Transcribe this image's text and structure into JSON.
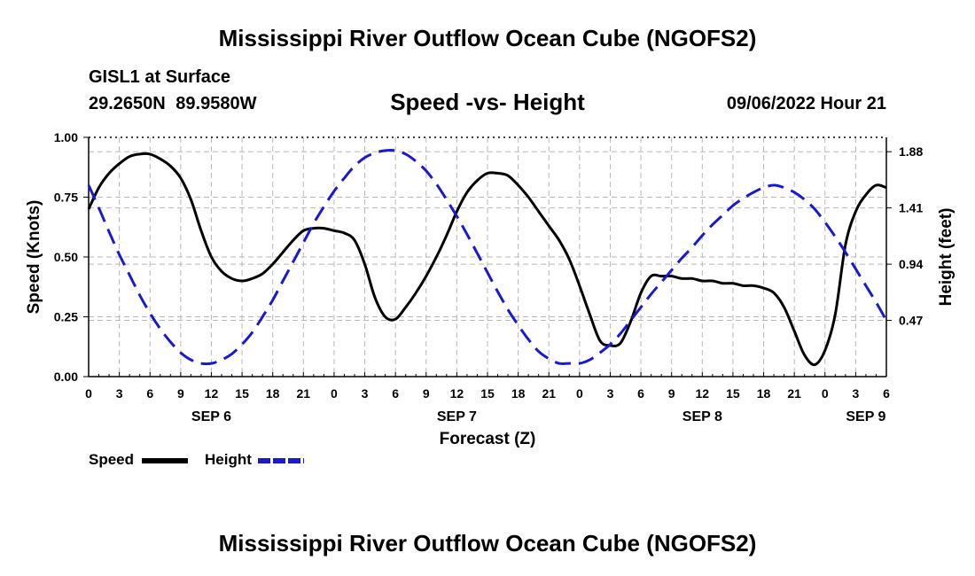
{
  "header": {
    "title": "Mississippi River Outflow Ocean Cube (NGOFS2)",
    "station": "GISL1 at Surface",
    "coords": "29.2650N  89.9580W",
    "subtitle": "Speed -vs- Height",
    "datetime": "09/06/2022 Hour 21"
  },
  "footer": {
    "title": "Mississippi River Outflow Ocean Cube (NGOFS2)"
  },
  "legend": {
    "speed_label": "Speed",
    "height_label": "Height"
  },
  "colors": {
    "speed": "#000000",
    "height": "#1a1acc",
    "grid": "#b8b8b8"
  },
  "chart_data": {
    "type": "line",
    "title": "Speed -vs- Height",
    "xlabel": "Forecast (Z)",
    "ylabel_left": "Speed (Knots)",
    "ylabel_right": "Height (feet)",
    "x_units": "hours since SEP 6 00Z",
    "xlim": [
      0,
      78
    ],
    "ylim_left": [
      0,
      1.0
    ],
    "yticks_left": [
      "0.00",
      "0.25",
      "0.50",
      "0.75",
      "1.00"
    ],
    "ylim_right": [
      0.0,
      2.0
    ],
    "yticks_right": [
      {
        "value": 0.47,
        "label": "0.47"
      },
      {
        "value": 0.94,
        "label": "0.94"
      },
      {
        "value": 1.41,
        "label": "1.41"
      },
      {
        "value": 1.88,
        "label": "1.88"
      }
    ],
    "xticks": [
      {
        "x": 0,
        "label": "0"
      },
      {
        "x": 3,
        "label": "3"
      },
      {
        "x": 6,
        "label": "6"
      },
      {
        "x": 9,
        "label": "9"
      },
      {
        "x": 12,
        "label": "12"
      },
      {
        "x": 15,
        "label": "15"
      },
      {
        "x": 18,
        "label": "18"
      },
      {
        "x": 21,
        "label": "21"
      },
      {
        "x": 24,
        "label": "0"
      },
      {
        "x": 27,
        "label": "3"
      },
      {
        "x": 30,
        "label": "6"
      },
      {
        "x": 33,
        "label": "9"
      },
      {
        "x": 36,
        "label": "12"
      },
      {
        "x": 39,
        "label": "15"
      },
      {
        "x": 42,
        "label": "18"
      },
      {
        "x": 45,
        "label": "21"
      },
      {
        "x": 48,
        "label": "0"
      },
      {
        "x": 51,
        "label": "3"
      },
      {
        "x": 54,
        "label": "6"
      },
      {
        "x": 57,
        "label": "9"
      },
      {
        "x": 60,
        "label": "12"
      },
      {
        "x": 63,
        "label": "15"
      },
      {
        "x": 66,
        "label": "18"
      },
      {
        "x": 69,
        "label": "21"
      },
      {
        "x": 72,
        "label": "0"
      },
      {
        "x": 75,
        "label": "3"
      },
      {
        "x": 78,
        "label": "6"
      }
    ],
    "day_labels": [
      {
        "x": 12,
        "label": "SEP 6"
      },
      {
        "x": 36,
        "label": "SEP 7"
      },
      {
        "x": 60,
        "label": "SEP 8"
      },
      {
        "x": 76,
        "label": "SEP 9"
      }
    ],
    "grid": true,
    "series": [
      {
        "name": "Speed",
        "axis": "left",
        "style": "solid",
        "points": [
          [
            0,
            0.7
          ],
          [
            1,
            0.79
          ],
          [
            2,
            0.85
          ],
          [
            3,
            0.89
          ],
          [
            4,
            0.92
          ],
          [
            5,
            0.93
          ],
          [
            6,
            0.93
          ],
          [
            7,
            0.91
          ],
          [
            8,
            0.88
          ],
          [
            9,
            0.83
          ],
          [
            10,
            0.74
          ],
          [
            11,
            0.61
          ],
          [
            12,
            0.5
          ],
          [
            13,
            0.44
          ],
          [
            14,
            0.41
          ],
          [
            15,
            0.4
          ],
          [
            16,
            0.41
          ],
          [
            17,
            0.43
          ],
          [
            18,
            0.47
          ],
          [
            19,
            0.52
          ],
          [
            20,
            0.57
          ],
          [
            21,
            0.61
          ],
          [
            22,
            0.62
          ],
          [
            23,
            0.62
          ],
          [
            24,
            0.61
          ],
          [
            25,
            0.6
          ],
          [
            26,
            0.57
          ],
          [
            27,
            0.47
          ],
          [
            28,
            0.33
          ],
          [
            29,
            0.25
          ],
          [
            30,
            0.24
          ],
          [
            31,
            0.29
          ],
          [
            32,
            0.35
          ],
          [
            33,
            0.42
          ],
          [
            34,
            0.5
          ],
          [
            35,
            0.59
          ],
          [
            36,
            0.69
          ],
          [
            37,
            0.77
          ],
          [
            38,
            0.82
          ],
          [
            39,
            0.85
          ],
          [
            40,
            0.85
          ],
          [
            41,
            0.84
          ],
          [
            42,
            0.8
          ],
          [
            43,
            0.75
          ],
          [
            44,
            0.69
          ],
          [
            45,
            0.63
          ],
          [
            46,
            0.57
          ],
          [
            47,
            0.49
          ],
          [
            48,
            0.38
          ],
          [
            49,
            0.26
          ],
          [
            50,
            0.15
          ],
          [
            51,
            0.13
          ],
          [
            52,
            0.14
          ],
          [
            53,
            0.23
          ],
          [
            54,
            0.35
          ],
          [
            55,
            0.42
          ],
          [
            56,
            0.42
          ],
          [
            57,
            0.42
          ],
          [
            58,
            0.41
          ],
          [
            59,
            0.41
          ],
          [
            60,
            0.4
          ],
          [
            61,
            0.4
          ],
          [
            62,
            0.39
          ],
          [
            63,
            0.39
          ],
          [
            64,
            0.38
          ],
          [
            65,
            0.38
          ],
          [
            66,
            0.37
          ],
          [
            67,
            0.35
          ],
          [
            68,
            0.29
          ],
          [
            69,
            0.19
          ],
          [
            70,
            0.09
          ],
          [
            71,
            0.05
          ],
          [
            72,
            0.11
          ],
          [
            73,
            0.26
          ],
          [
            74,
            0.55
          ],
          [
            75,
            0.69
          ],
          [
            76,
            0.76
          ],
          [
            77,
            0.8
          ],
          [
            78,
            0.79
          ]
        ]
      },
      {
        "name": "Height",
        "axis": "right",
        "style": "dashed",
        "points": [
          [
            0,
            1.6
          ],
          [
            1,
            1.41
          ],
          [
            2,
            1.21
          ],
          [
            3,
            1.02
          ],
          [
            4,
            0.85
          ],
          [
            5,
            0.68
          ],
          [
            6,
            0.53
          ],
          [
            7,
            0.4
          ],
          [
            8,
            0.29
          ],
          [
            9,
            0.2
          ],
          [
            10,
            0.14
          ],
          [
            11,
            0.11
          ],
          [
            12,
            0.11
          ],
          [
            13,
            0.14
          ],
          [
            14,
            0.19
          ],
          [
            15,
            0.27
          ],
          [
            16,
            0.37
          ],
          [
            17,
            0.5
          ],
          [
            18,
            0.64
          ],
          [
            19,
            0.8
          ],
          [
            20,
            0.96
          ],
          [
            21,
            1.12
          ],
          [
            22,
            1.28
          ],
          [
            23,
            1.42
          ],
          [
            24,
            1.55
          ],
          [
            25,
            1.66
          ],
          [
            26,
            1.76
          ],
          [
            27,
            1.83
          ],
          [
            28,
            1.87
          ],
          [
            29,
            1.89
          ],
          [
            30,
            1.89
          ],
          [
            31,
            1.86
          ],
          [
            32,
            1.8
          ],
          [
            33,
            1.72
          ],
          [
            34,
            1.61
          ],
          [
            35,
            1.48
          ],
          [
            36,
            1.34
          ],
          [
            37,
            1.19
          ],
          [
            38,
            1.03
          ],
          [
            39,
            0.87
          ],
          [
            40,
            0.71
          ],
          [
            41,
            0.56
          ],
          [
            42,
            0.43
          ],
          [
            43,
            0.31
          ],
          [
            44,
            0.21
          ],
          [
            45,
            0.15
          ],
          [
            46,
            0.11
          ],
          [
            47,
            0.11
          ],
          [
            48,
            0.11
          ],
          [
            49,
            0.14
          ],
          [
            50,
            0.2
          ],
          [
            51,
            0.27
          ],
          [
            52,
            0.36
          ],
          [
            53,
            0.47
          ],
          [
            54,
            0.58
          ],
          [
            55,
            0.69
          ],
          [
            56,
            0.79
          ],
          [
            57,
            0.89
          ],
          [
            58,
            0.99
          ],
          [
            59,
            1.08
          ],
          [
            60,
            1.18
          ],
          [
            61,
            1.27
          ],
          [
            62,
            1.35
          ],
          [
            63,
            1.43
          ],
          [
            64,
            1.49
          ],
          [
            65,
            1.54
          ],
          [
            66,
            1.58
          ],
          [
            67,
            1.6
          ],
          [
            68,
            1.58
          ],
          [
            69,
            1.54
          ],
          [
            70,
            1.48
          ],
          [
            71,
            1.4
          ],
          [
            72,
            1.29
          ],
          [
            73,
            1.17
          ],
          [
            74,
            1.04
          ],
          [
            75,
            0.9
          ],
          [
            76,
            0.76
          ],
          [
            77,
            0.62
          ],
          [
            78,
            0.47
          ]
        ]
      }
    ]
  }
}
